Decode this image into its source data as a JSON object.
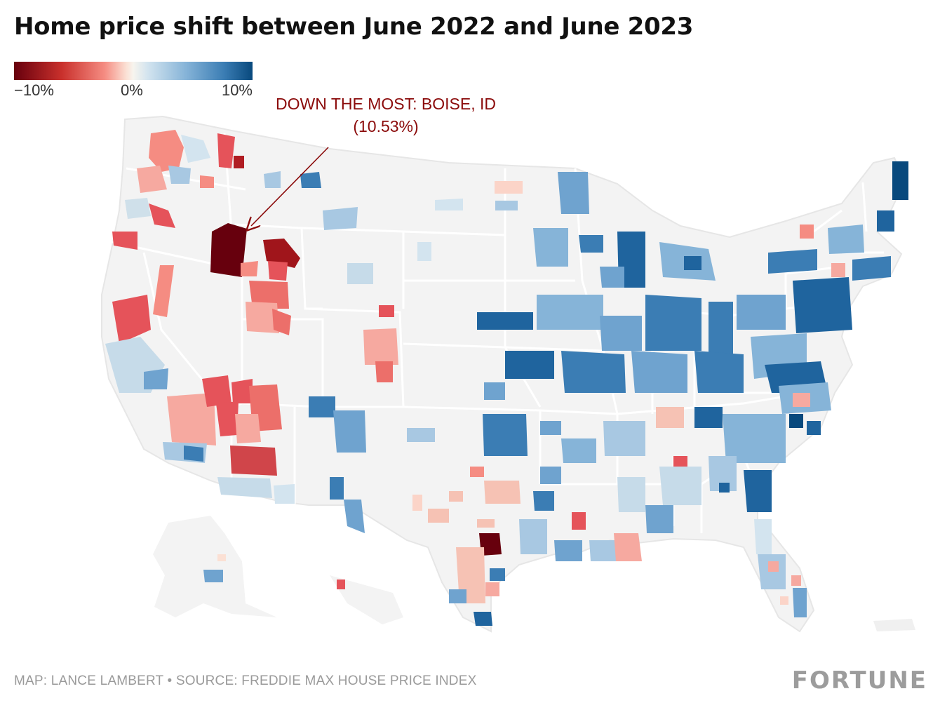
{
  "title": "Home price shift between June 2022 and June 2023",
  "legend": {
    "min_label": "−10%",
    "mid_label": "0%",
    "max_label": "10%",
    "colors": [
      "#67000d",
      "#c9302c",
      "#f58c82",
      "#fbe0d4",
      "#f7f4ee",
      "#d3e4ef",
      "#86b4d8",
      "#3b7db4",
      "#08497d"
    ]
  },
  "annotation": {
    "line1": "DOWN THE MOST: BOISE, ID",
    "line2": "(10.53%)",
    "color": "#8b0b0b"
  },
  "footer": {
    "credit": "MAP: LANCE LAMBERT • SOURCE: FREDDIE MAX HOUSE PRICE INDEX",
    "brand": "FORTUNE"
  },
  "map": {
    "base_color": "#f3f3f3",
    "border_color": "#ffffff"
  }
}
